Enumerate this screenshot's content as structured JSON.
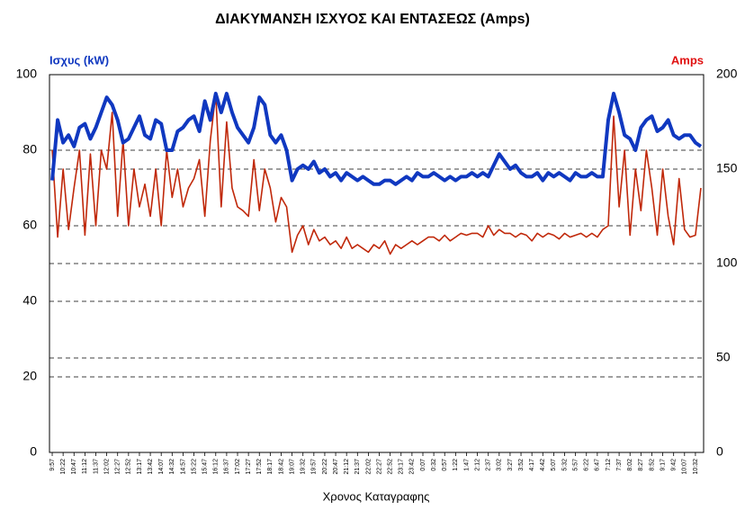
{
  "chart_data": {
    "type": "line",
    "title": "ΔΙΑΚΥΜΑΝΣΗ ΙΣΧΥΟΣ ΚΑΙ ΕΝΤΑΣΕΩΣ (Amps)",
    "x_label": "Χρονος Καταγραφης",
    "categories": [
      "9:57",
      null,
      "10:22",
      null,
      "10:47",
      null,
      "11:12",
      null,
      "11:37",
      null,
      "12:02",
      null,
      "12:27",
      null,
      "12:52",
      null,
      "13:17",
      null,
      "13:42",
      null,
      "14:07",
      null,
      "14:32",
      null,
      "14:57",
      null,
      "15:22",
      null,
      "15:47",
      null,
      "16:12",
      null,
      "16:37",
      null,
      "17:02",
      null,
      "17:27",
      null,
      "17:52",
      null,
      "18:17",
      null,
      "18:42",
      null,
      "19:07",
      null,
      "19:32",
      null,
      "19:57",
      null,
      "20:22",
      null,
      "20:47",
      null,
      "21:12",
      null,
      "21:37",
      null,
      "22:02",
      null,
      "22:27",
      null,
      "22:52",
      null,
      "23:17",
      null,
      "23:42",
      null,
      "0:07",
      null,
      "0:32",
      null,
      "0:57",
      null,
      "1:22",
      null,
      "1:47",
      null,
      "2:12",
      null,
      "2:37",
      null,
      "3:02",
      null,
      "3:27",
      null,
      "3:52",
      null,
      "4:17",
      null,
      "4:42",
      null,
      "5:07",
      null,
      "5:32",
      null,
      "5:57",
      null,
      "6:22",
      null,
      "6:47",
      null,
      "7:12",
      null,
      "7:37",
      null,
      "8:02",
      null,
      "8:27",
      null,
      "8:52",
      null,
      "9:17",
      null,
      "9:42",
      null,
      "10:07",
      null,
      "10:32",
      null
    ],
    "series": [
      {
        "name": "Ισχυς (kW)",
        "color": "#1038c0",
        "axis": "y",
        "values": [
          72,
          88,
          82,
          84,
          81,
          86,
          87,
          83,
          86,
          90,
          94,
          92,
          88,
          82,
          83,
          86,
          89,
          84,
          83,
          88,
          87,
          80,
          80,
          85,
          86,
          88,
          89,
          85,
          93,
          88,
          95,
          90,
          95,
          90,
          86,
          84,
          82,
          86,
          94,
          92,
          84,
          82,
          84,
          80,
          72,
          75,
          76,
          75,
          77,
          74,
          75,
          73,
          74,
          72,
          74,
          73,
          72,
          73,
          72,
          71,
          71,
          72,
          72,
          71,
          72,
          73,
          72,
          74,
          73,
          73,
          74,
          73,
          72,
          73,
          72,
          73,
          73,
          74,
          73,
          74,
          73,
          76,
          79,
          77,
          75,
          76,
          74,
          73,
          73,
          74,
          72,
          74,
          73,
          74,
          73,
          72,
          74,
          73,
          73,
          74,
          73,
          73,
          88,
          95,
          90,
          84,
          83,
          80,
          86,
          88,
          89,
          85,
          86,
          88,
          84,
          83,
          84,
          84,
          82,
          81
        ]
      },
      {
        "name": "Amps",
        "color": "#c0280a",
        "axis": "y2",
        "values": [
          160,
          114,
          150,
          118,
          140,
          160,
          115,
          158,
          120,
          160,
          150,
          180,
          125,
          165,
          120,
          150,
          130,
          142,
          125,
          150,
          120,
          160,
          135,
          150,
          130,
          140,
          145,
          155,
          125,
          165,
          190,
          130,
          175,
          140,
          130,
          128,
          125,
          155,
          128,
          150,
          140,
          122,
          135,
          130,
          106,
          115,
          120,
          110,
          118,
          112,
          114,
          110,
          112,
          108,
          114,
          108,
          110,
          108,
          106,
          110,
          108,
          112,
          105,
          110,
          108,
          110,
          112,
          110,
          112,
          114,
          114,
          112,
          115,
          112,
          114,
          116,
          115,
          116,
          116,
          114,
          120,
          115,
          118,
          116,
          116,
          114,
          116,
          115,
          112,
          116,
          114,
          116,
          115,
          113,
          116,
          114,
          115,
          116,
          114,
          116,
          114,
          118,
          120,
          178,
          130,
          160,
          115,
          150,
          128,
          160,
          140,
          115,
          150,
          125,
          110,
          145,
          118,
          114,
          115,
          140
        ]
      }
    ],
    "ylim": [
      0,
      100
    ],
    "yticks": [
      0,
      20,
      40,
      60,
      80,
      100
    ],
    "y2lim": [
      0,
      200
    ],
    "y2ticks": [
      0,
      50,
      100,
      150,
      200
    ],
    "grid": true
  }
}
